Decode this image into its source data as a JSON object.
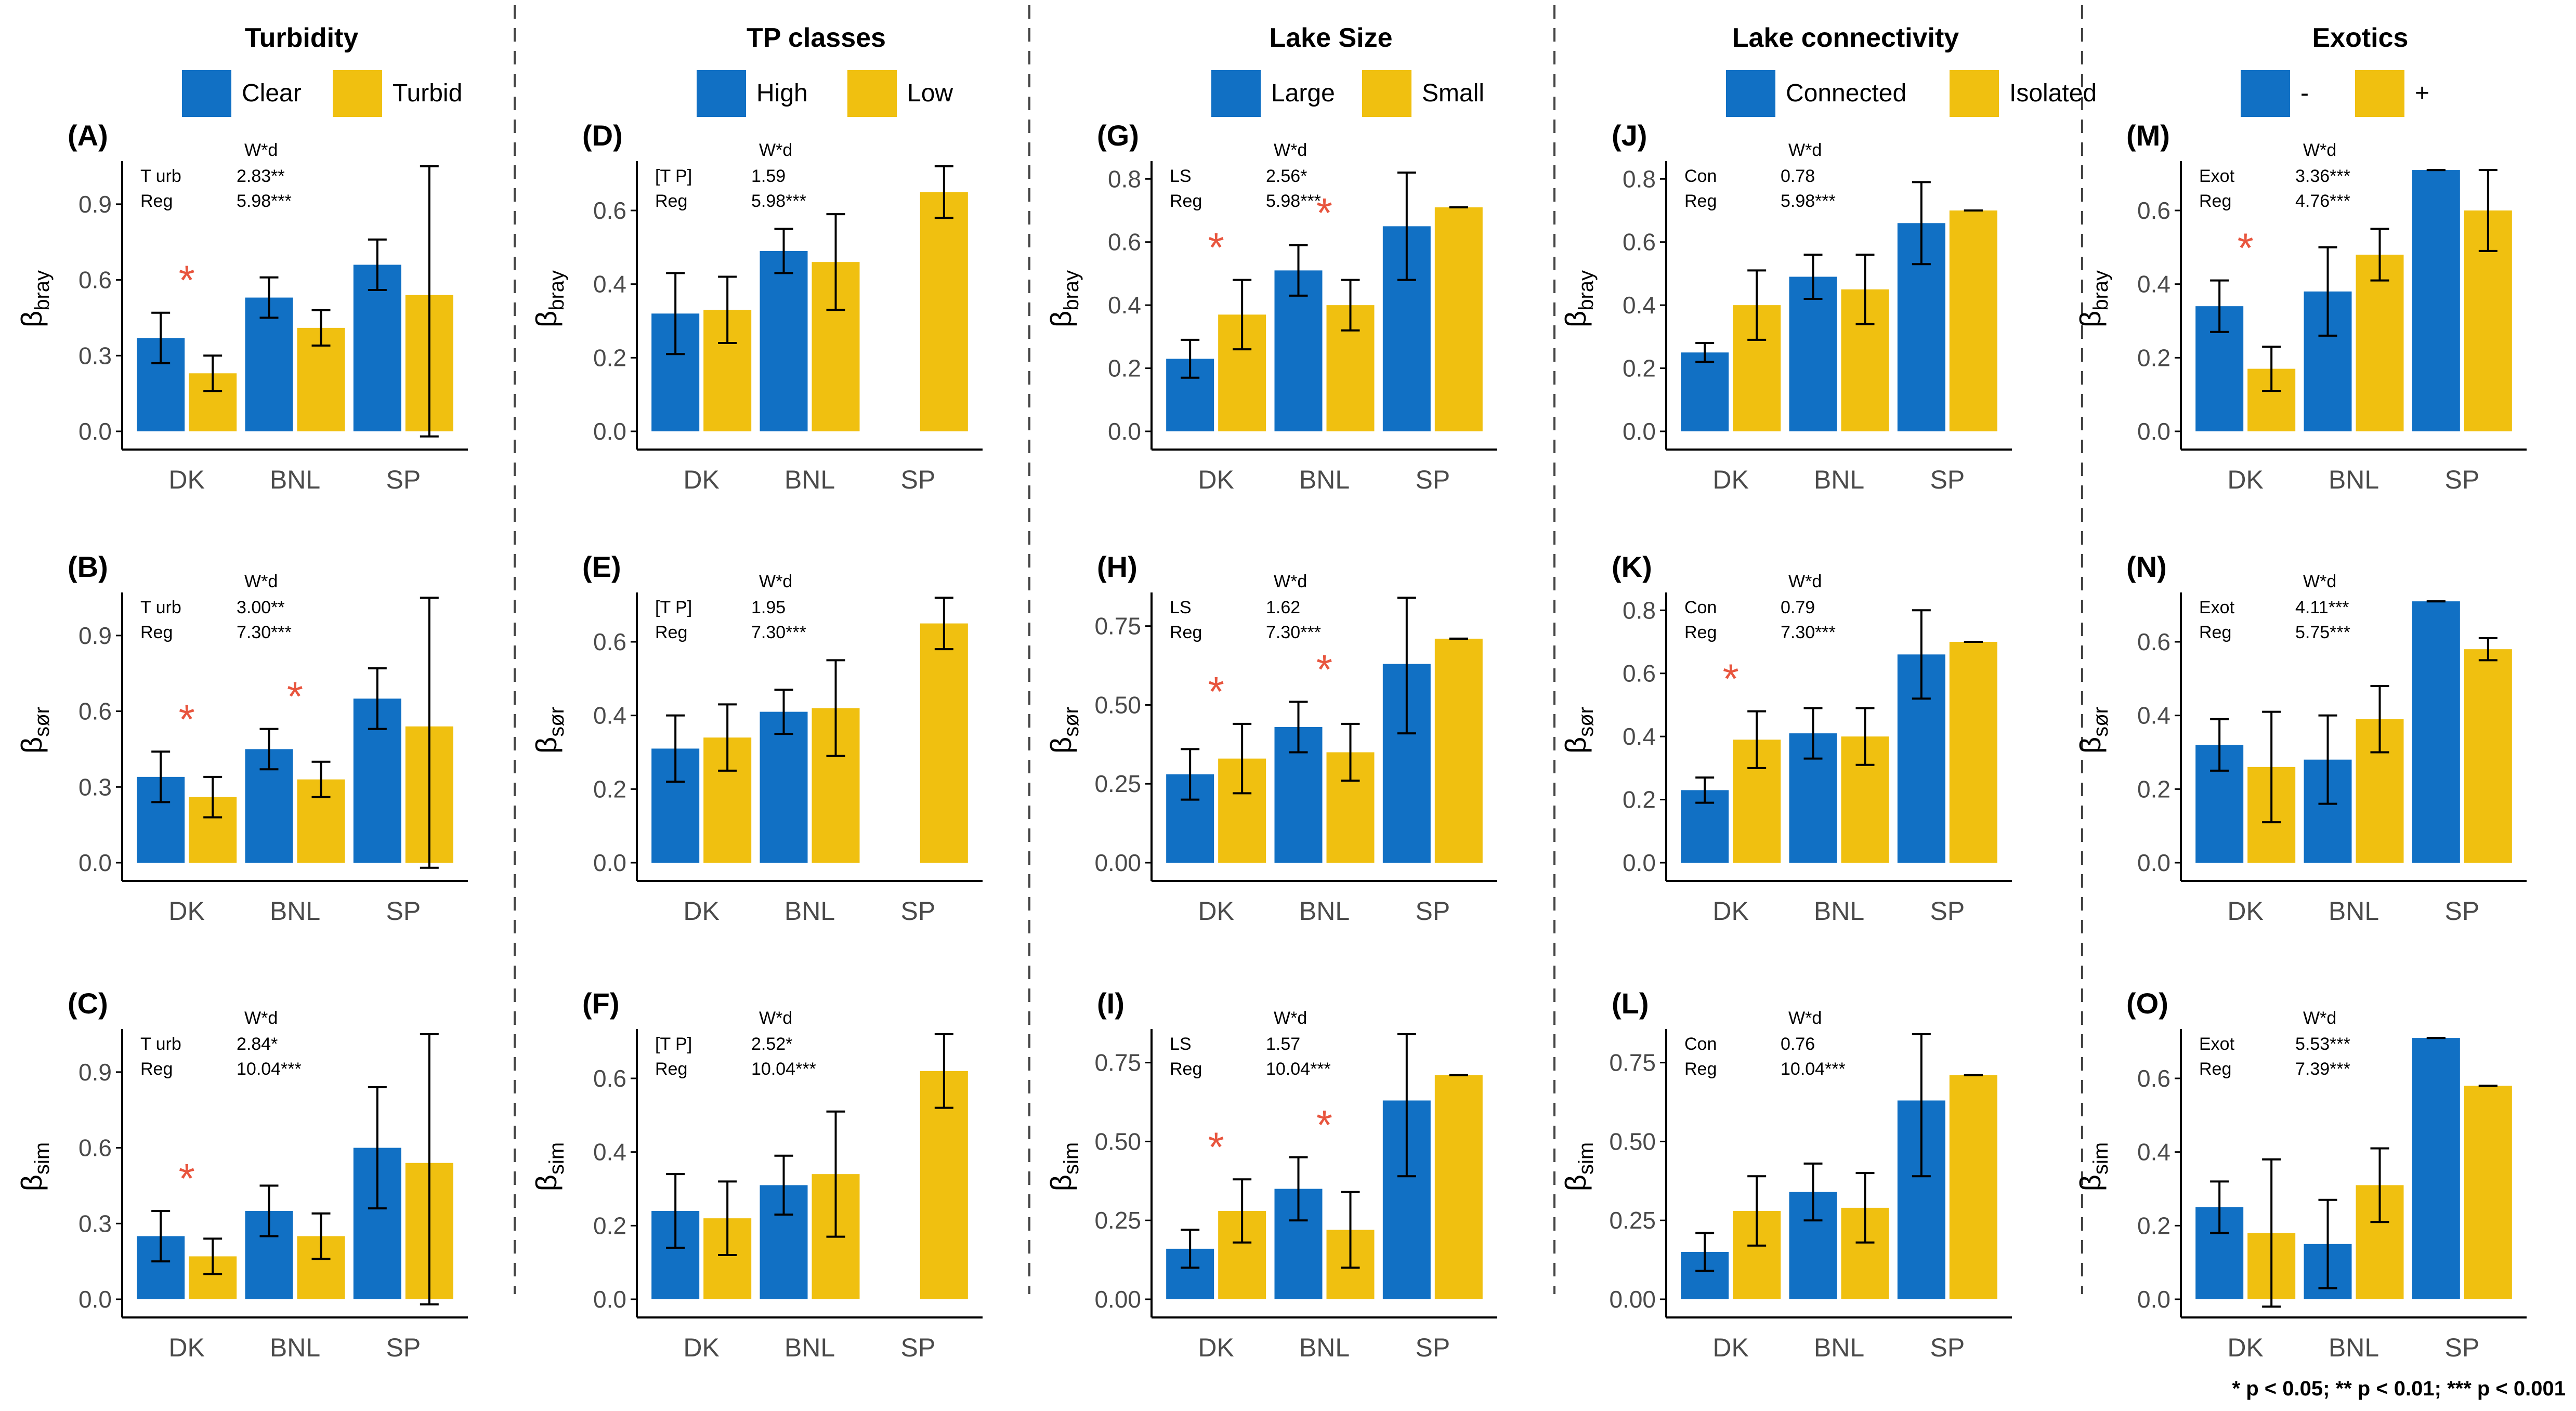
{
  "footnote": "* p < 0.05; ** p < 0.01; *** p < 0.001",
  "colors": {
    "blue": "#1170C4",
    "yellow": "#F0C010",
    "star": "#E8553E"
  },
  "groups": [
    "DK",
    "BNL",
    "SP"
  ],
  "chart_data": [
    {
      "type": "bar",
      "title": "Turbidity",
      "legend": [
        "Clear",
        "Turbid"
      ],
      "panels": [
        {
          "label": "(A)",
          "ylabel": "β",
          "ysub": "bray",
          "ylim": [
            0,
            1.05
          ],
          "yticks": [
            0.0,
            0.3,
            0.6,
            0.9
          ],
          "ytick_labels": [
            "0.0",
            "0.3",
            "0.6",
            "0.9"
          ],
          "stats": {
            "header": "W*d",
            "rows": [
              [
                "T urb",
                "2.83**"
              ],
              [
                "Reg",
                "5.98***"
              ]
            ]
          },
          "series": [
            {
              "name": "Clear",
              "values": [
                0.37,
                0.53,
                0.66
              ],
              "err": [
                0.1,
                0.08,
                0.1
              ]
            },
            {
              "name": "Turbid",
              "values": [
                0.23,
                0.41,
                0.54
              ],
              "err": [
                0.07,
                0.07,
                0.56
              ]
            }
          ],
          "sig": [
            "DK"
          ]
        },
        {
          "label": "(B)",
          "ylabel": "β",
          "ysub": "sør",
          "ylim": [
            0,
            1.05
          ],
          "yticks": [
            0.0,
            0.3,
            0.6,
            0.9
          ],
          "ytick_labels": [
            "0.0",
            "0.3",
            "0.6",
            "0.9"
          ],
          "stats": {
            "header": "W*d",
            "rows": [
              [
                "T urb",
                "3.00**"
              ],
              [
                "Reg",
                "7.30***"
              ]
            ]
          },
          "series": [
            {
              "name": "Clear",
              "values": [
                0.34,
                0.45,
                0.65
              ],
              "err": [
                0.1,
                0.08,
                0.12
              ]
            },
            {
              "name": "Turbid",
              "values": [
                0.26,
                0.33,
                0.54
              ],
              "err": [
                0.08,
                0.07,
                0.56
              ]
            }
          ],
          "sig": [
            "DK",
            "BNL"
          ]
        },
        {
          "label": "(C)",
          "ylabel": "β",
          "ysub": "sim",
          "ylim": [
            0,
            1.05
          ],
          "yticks": [
            0.0,
            0.3,
            0.6,
            0.9
          ],
          "ytick_labels": [
            "0.0",
            "0.3",
            "0.6",
            "0.9"
          ],
          "stats": {
            "header": "W*d",
            "rows": [
              [
                "T urb",
                "2.84*"
              ],
              [
                "Reg",
                "10.04***"
              ]
            ]
          },
          "series": [
            {
              "name": "Clear",
              "values": [
                0.25,
                0.35,
                0.6
              ],
              "err": [
                0.1,
                0.1,
                0.24
              ]
            },
            {
              "name": "Turbid",
              "values": [
                0.17,
                0.25,
                0.54
              ],
              "err": [
                0.07,
                0.09,
                0.56
              ]
            }
          ],
          "sig": [
            "DK"
          ]
        }
      ]
    },
    {
      "type": "bar",
      "title": "TP classes",
      "legend": [
        "High",
        "Low"
      ],
      "panels": [
        {
          "label": "(D)",
          "ylabel": "β",
          "ysub": "bray",
          "ylim": [
            0,
            0.72
          ],
          "yticks": [
            0.0,
            0.2,
            0.4,
            0.6
          ],
          "ytick_labels": [
            "0.0",
            "0.2",
            "0.4",
            "0.6"
          ],
          "stats": {
            "header": "W*d",
            "rows": [
              [
                "[T P]",
                "1.59"
              ],
              [
                "Reg",
                "5.98***"
              ]
            ]
          },
          "series": [
            {
              "name": "High",
              "values": [
                0.32,
                0.49,
                null
              ],
              "err": [
                0.11,
                0.06,
                null
              ]
            },
            {
              "name": "Low",
              "values": [
                0.33,
                0.46,
                0.65
              ],
              "err": [
                0.09,
                0.13,
                0.07
              ]
            }
          ],
          "sig": []
        },
        {
          "label": "(E)",
          "ylabel": "β",
          "ysub": "sør",
          "ylim": [
            0,
            0.72
          ],
          "yticks": [
            0.0,
            0.2,
            0.4,
            0.6
          ],
          "ytick_labels": [
            "0.0",
            "0.2",
            "0.4",
            "0.6"
          ],
          "stats": {
            "header": "W*d",
            "rows": [
              [
                "[T P]",
                "1.95"
              ],
              [
                "Reg",
                "7.30***"
              ]
            ]
          },
          "series": [
            {
              "name": "High",
              "values": [
                0.31,
                0.41,
                null
              ],
              "err": [
                0.09,
                0.06,
                null
              ]
            },
            {
              "name": "Low",
              "values": [
                0.34,
                0.42,
                0.65
              ],
              "err": [
                0.09,
                0.13,
                0.07
              ]
            }
          ],
          "sig": []
        },
        {
          "label": "(F)",
          "ylabel": "β",
          "ysub": "sim",
          "ylim": [
            0,
            0.72
          ],
          "yticks": [
            0.0,
            0.2,
            0.4,
            0.6
          ],
          "ytick_labels": [
            "0.0",
            "0.2",
            "0.4",
            "0.6"
          ],
          "stats": {
            "header": "W*d",
            "rows": [
              [
                "[T P]",
                "2.52*"
              ],
              [
                "Reg",
                "10.04***"
              ]
            ]
          },
          "series": [
            {
              "name": "High",
              "values": [
                0.24,
                0.31,
                null
              ],
              "err": [
                0.1,
                0.08,
                null
              ]
            },
            {
              "name": "Low",
              "values": [
                0.22,
                0.34,
                0.62
              ],
              "err": [
                0.1,
                0.17,
                0.1
              ]
            }
          ],
          "sig": []
        }
      ]
    },
    {
      "type": "bar",
      "title": "Lake Size",
      "legend": [
        "Large",
        "Small"
      ],
      "panels": [
        {
          "label": "(G)",
          "ylabel": "β",
          "ysub": "bray",
          "ylim": [
            0,
            0.84
          ],
          "yticks": [
            0.0,
            0.2,
            0.4,
            0.6,
            0.8
          ],
          "ytick_labels": [
            "0.0",
            "0.2",
            "0.4",
            "0.6",
            "0.8"
          ],
          "stats": {
            "header": "W*d",
            "rows": [
              [
                "LS",
                "2.56*"
              ],
              [
                "Reg",
                "5.98***"
              ]
            ]
          },
          "series": [
            {
              "name": "Large",
              "values": [
                0.23,
                0.51,
                0.65
              ],
              "err": [
                0.06,
                0.08,
                0.17
              ]
            },
            {
              "name": "Small",
              "values": [
                0.37,
                0.4,
                0.71
              ],
              "err": [
                0.11,
                0.08,
                0.0
              ]
            }
          ],
          "sig": [
            "DK",
            "BNL"
          ]
        },
        {
          "label": "(H)",
          "ylabel": "β",
          "ysub": "sør",
          "ylim": [
            0,
            0.84
          ],
          "yticks": [
            0.0,
            0.25,
            0.5,
            0.75
          ],
          "ytick_labels": [
            "0.00",
            "0.25",
            "0.50",
            "0.75"
          ],
          "stats": {
            "header": "W*d",
            "rows": [
              [
                "LS",
                "1.62"
              ],
              [
                "Reg",
                "7.30***"
              ]
            ]
          },
          "series": [
            {
              "name": "Large",
              "values": [
                0.28,
                0.43,
                0.63
              ],
              "err": [
                0.08,
                0.08,
                0.22
              ]
            },
            {
              "name": "Small",
              "values": [
                0.33,
                0.35,
                0.71
              ],
              "err": [
                0.11,
                0.09,
                0.0
              ]
            }
          ],
          "sig": [
            "DK",
            "BNL"
          ]
        },
        {
          "label": "(I)",
          "ylabel": "β",
          "ysub": "sim",
          "ylim": [
            0,
            0.84
          ],
          "yticks": [
            0.0,
            0.25,
            0.5,
            0.75
          ],
          "ytick_labels": [
            "0.00",
            "0.25",
            "0.50",
            "0.75"
          ],
          "stats": {
            "header": "W*d",
            "rows": [
              [
                "LS",
                "1.57"
              ],
              [
                "Reg",
                "10.04***"
              ]
            ]
          },
          "series": [
            {
              "name": "Large",
              "values": [
                0.16,
                0.35,
                0.63
              ],
              "err": [
                0.06,
                0.1,
                0.24
              ]
            },
            {
              "name": "Small",
              "values": [
                0.28,
                0.22,
                0.71
              ],
              "err": [
                0.1,
                0.12,
                0.0
              ]
            }
          ],
          "sig": [
            "DK",
            "BNL"
          ]
        }
      ]
    },
    {
      "type": "bar",
      "title": "Lake connectivity",
      "legend": [
        "Connected",
        "Isolated"
      ],
      "panels": [
        {
          "label": "(J)",
          "ylabel": "β",
          "ysub": "bray",
          "ylim": [
            0,
            0.84
          ],
          "yticks": [
            0.0,
            0.2,
            0.4,
            0.6,
            0.8
          ],
          "ytick_labels": [
            "0.0",
            "0.2",
            "0.4",
            "0.6",
            "0.8"
          ],
          "stats": {
            "header": "W*d",
            "rows": [
              [
                "Con",
                "0.78"
              ],
              [
                "Reg",
                "5.98***"
              ]
            ]
          },
          "series": [
            {
              "name": "Connected",
              "values": [
                0.25,
                0.49,
                0.66
              ],
              "err": [
                0.03,
                0.07,
                0.13
              ]
            },
            {
              "name": "Isolated",
              "values": [
                0.4,
                0.45,
                0.7
              ],
              "err": [
                0.11,
                0.11,
                0.0
              ]
            }
          ],
          "sig": []
        },
        {
          "label": "(K)",
          "ylabel": "β",
          "ysub": "sør",
          "ylim": [
            0,
            0.84
          ],
          "yticks": [
            0.0,
            0.2,
            0.4,
            0.6,
            0.8
          ],
          "ytick_labels": [
            "0.0",
            "0.2",
            "0.4",
            "0.6",
            "0.8"
          ],
          "stats": {
            "header": "W*d",
            "rows": [
              [
                "Con",
                "0.79"
              ],
              [
                "Reg",
                "7.30***"
              ]
            ]
          },
          "series": [
            {
              "name": "Connected",
              "values": [
                0.23,
                0.41,
                0.66
              ],
              "err": [
                0.04,
                0.08,
                0.14
              ]
            },
            {
              "name": "Isolated",
              "values": [
                0.39,
                0.4,
                0.7
              ],
              "err": [
                0.09,
                0.09,
                0.0
              ]
            }
          ],
          "sig": [
            "DK"
          ]
        },
        {
          "label": "(L)",
          "ylabel": "β",
          "ysub": "sim",
          "ylim": [
            0,
            0.84
          ],
          "yticks": [
            0.0,
            0.25,
            0.5,
            0.75
          ],
          "ytick_labels": [
            "0.00",
            "0.25",
            "0.50",
            "0.75"
          ],
          "stats": {
            "header": "W*d",
            "rows": [
              [
                "Con",
                "0.76"
              ],
              [
                "Reg",
                "10.04***"
              ]
            ]
          },
          "series": [
            {
              "name": "Connected",
              "values": [
                0.15,
                0.34,
                0.63
              ],
              "err": [
                0.06,
                0.09,
                0.24
              ]
            },
            {
              "name": "Isolated",
              "values": [
                0.28,
                0.29,
                0.71
              ],
              "err": [
                0.11,
                0.11,
                0.0
              ]
            }
          ],
          "sig": []
        }
      ]
    },
    {
      "type": "bar",
      "title": "Exotics",
      "legend": [
        "-",
        "+"
      ],
      "panels": [
        {
          "label": "(M)",
          "ylabel": "β",
          "ysub": "bray",
          "ylim": [
            0,
            0.72
          ],
          "yticks": [
            0.0,
            0.2,
            0.4,
            0.6
          ],
          "ytick_labels": [
            "0.0",
            "0.2",
            "0.4",
            "0.6"
          ],
          "stats": {
            "header": "W*d",
            "rows": [
              [
                "Exot",
                "3.36***"
              ],
              [
                "Reg",
                "4.76***"
              ]
            ]
          },
          "series": [
            {
              "name": "-",
              "values": [
                0.34,
                0.38,
                0.71
              ],
              "err": [
                0.07,
                0.12,
                0.0
              ]
            },
            {
              "name": "+",
              "values": [
                0.17,
                0.48,
                0.6
              ],
              "err": [
                0.06,
                0.07,
                0.11
              ]
            }
          ],
          "sig": [
            "DK"
          ]
        },
        {
          "label": "(N)",
          "ylabel": "β",
          "ysub": "sør",
          "ylim": [
            0,
            0.72
          ],
          "yticks": [
            0.0,
            0.2,
            0.4,
            0.6
          ],
          "ytick_labels": [
            "0.0",
            "0.2",
            "0.4",
            "0.6"
          ],
          "stats": {
            "header": "W*d",
            "rows": [
              [
                "Exot",
                "4.11***"
              ],
              [
                "Reg",
                "5.75***"
              ]
            ]
          },
          "series": [
            {
              "name": "-",
              "values": [
                0.32,
                0.28,
                0.71
              ],
              "err": [
                0.07,
                0.12,
                0.0
              ]
            },
            {
              "name": "+",
              "values": [
                0.26,
                0.39,
                0.58
              ],
              "err": [
                0.15,
                0.09,
                0.03
              ]
            }
          ],
          "sig": []
        },
        {
          "label": "(O)",
          "ylabel": "β",
          "ysub": "sim",
          "ylim": [
            0,
            0.72
          ],
          "yticks": [
            0.0,
            0.2,
            0.4,
            0.6
          ],
          "ytick_labels": [
            "0.0",
            "0.2",
            "0.4",
            "0.6"
          ],
          "stats": {
            "header": "W*d",
            "rows": [
              [
                "Exot",
                "5.53***"
              ],
              [
                "Reg",
                "7.39***"
              ]
            ]
          },
          "series": [
            {
              "name": "-",
              "values": [
                0.25,
                0.15,
                0.71
              ],
              "err": [
                0.07,
                0.12,
                0.0
              ]
            },
            {
              "name": "+",
              "values": [
                0.18,
                0.31,
                0.58
              ],
              "err": [
                0.2,
                0.1,
                0.0
              ]
            }
          ],
          "sig": []
        }
      ]
    }
  ]
}
